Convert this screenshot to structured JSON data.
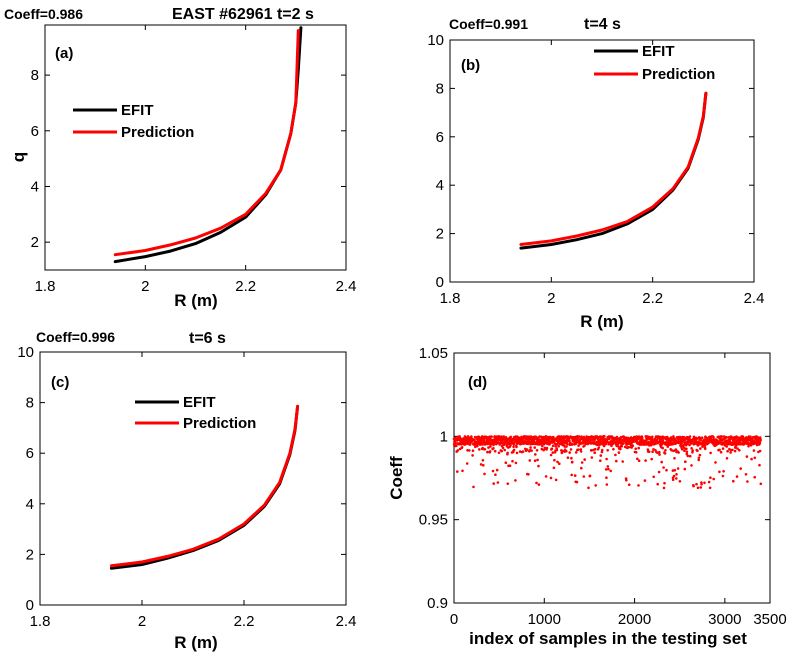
{
  "figure": {
    "colors": {
      "efit": "#000000",
      "prediction": "#ff0000",
      "axis": "#000000"
    }
  },
  "chart_data": [
    {
      "type": "line",
      "panel_label": "(a)",
      "coeff_text": "Coeff=0.986",
      "title": "EAST #62961 t=2 s",
      "xlabel": "R (m)",
      "ylabel": "q",
      "xlim": [
        1.8,
        2.4
      ],
      "ylim": [
        1.0,
        9.8
      ],
      "xticks": [
        1.8,
        2.0,
        2.2,
        2.4
      ],
      "xtick_labels": [
        "1.8",
        "2",
        "2.2",
        "2.4"
      ],
      "yticks": [
        2,
        4,
        6,
        8
      ],
      "ytick_labels": [
        "2",
        "4",
        "6",
        "8"
      ],
      "legend": [
        "EFIT",
        "Prediction"
      ],
      "series": [
        {
          "name": "EFIT",
          "x": [
            1.94,
            2.0,
            2.05,
            2.1,
            2.15,
            2.2,
            2.24,
            2.27,
            2.29,
            2.3,
            2.305,
            2.31
          ],
          "y": [
            1.3,
            1.48,
            1.68,
            1.95,
            2.35,
            2.9,
            3.7,
            4.6,
            5.9,
            7.0,
            8.2,
            9.7
          ]
        },
        {
          "name": "Prediction",
          "x": [
            1.94,
            2.0,
            2.05,
            2.1,
            2.15,
            2.2,
            2.24,
            2.27,
            2.29,
            2.3,
            2.305
          ],
          "y": [
            1.55,
            1.7,
            1.9,
            2.15,
            2.5,
            3.0,
            3.75,
            4.6,
            5.9,
            7.0,
            9.6
          ]
        }
      ]
    },
    {
      "type": "line",
      "panel_label": "(b)",
      "coeff_text": "Coeff=0.991",
      "title": "t=4 s",
      "xlabel": "R (m)",
      "ylabel": "",
      "xlim": [
        1.8,
        2.4
      ],
      "ylim": [
        0,
        10
      ],
      "xticks": [
        1.8,
        2.0,
        2.2,
        2.4
      ],
      "xtick_labels": [
        "1.8",
        "2",
        "2.2",
        "2.4"
      ],
      "yticks": [
        0,
        2,
        4,
        6,
        8,
        10
      ],
      "ytick_labels": [
        "0",
        "2",
        "4",
        "6",
        "8",
        "10"
      ],
      "legend": [
        "EFIT",
        "Prediction"
      ],
      "series": [
        {
          "name": "EFIT",
          "x": [
            1.94,
            2.0,
            2.05,
            2.1,
            2.15,
            2.2,
            2.24,
            2.27,
            2.29,
            2.3,
            2.305
          ],
          "y": [
            1.4,
            1.55,
            1.75,
            2.0,
            2.4,
            3.0,
            3.8,
            4.7,
            5.9,
            6.8,
            7.8
          ]
        },
        {
          "name": "Prediction",
          "x": [
            1.94,
            2.0,
            2.05,
            2.1,
            2.15,
            2.2,
            2.24,
            2.27,
            2.29,
            2.3,
            2.305
          ],
          "y": [
            1.55,
            1.7,
            1.9,
            2.15,
            2.5,
            3.1,
            3.85,
            4.75,
            5.95,
            6.85,
            7.8
          ]
        }
      ]
    },
    {
      "type": "line",
      "panel_label": "(c)",
      "coeff_text": "Coeff=0.996",
      "title": "t=6 s",
      "xlabel": "R (m)",
      "ylabel": "",
      "xlim": [
        1.8,
        2.4
      ],
      "ylim": [
        0,
        10
      ],
      "xticks": [
        1.8,
        2.0,
        2.2,
        2.4
      ],
      "xtick_labels": [
        "1.8",
        "2",
        "2.2",
        "2.4"
      ],
      "yticks": [
        0,
        2,
        4,
        6,
        8,
        10
      ],
      "ytick_labels": [
        "0",
        "2",
        "4",
        "6",
        "8",
        "10"
      ],
      "legend": [
        "EFIT",
        "Prediction"
      ],
      "series": [
        {
          "name": "EFIT",
          "x": [
            1.94,
            2.0,
            2.05,
            2.1,
            2.15,
            2.2,
            2.24,
            2.27,
            2.29,
            2.3,
            2.305
          ],
          "y": [
            1.45,
            1.6,
            1.85,
            2.15,
            2.55,
            3.15,
            3.9,
            4.8,
            5.95,
            6.9,
            7.85
          ]
        },
        {
          "name": "Prediction",
          "x": [
            1.94,
            2.0,
            2.05,
            2.1,
            2.15,
            2.2,
            2.24,
            2.27,
            2.29,
            2.3,
            2.305
          ],
          "y": [
            1.55,
            1.7,
            1.92,
            2.2,
            2.6,
            3.2,
            3.95,
            4.85,
            6.0,
            6.95,
            7.85
          ]
        }
      ]
    },
    {
      "type": "scatter",
      "panel_label": "(d)",
      "title": "",
      "xlabel": "index of samples in the testing set",
      "ylabel": "Coeff",
      "xlim": [
        0,
        3500
      ],
      "ylim": [
        0.9,
        1.05
      ],
      "xticks": [
        0,
        1000,
        2000,
        3000,
        3500
      ],
      "xtick_labels": [
        "0",
        "1000",
        "2000",
        "3000",
        "3500"
      ],
      "yticks": [
        0.9,
        0.95,
        1.0,
        1.05
      ],
      "ytick_labels": [
        "0.9",
        "0.95",
        "1",
        "1.05"
      ],
      "series": [
        {
          "name": "Coeff",
          "n_samples": 3400,
          "main_band": [
            0.995,
            1.0
          ],
          "min_value": 0.969
        }
      ]
    }
  ]
}
